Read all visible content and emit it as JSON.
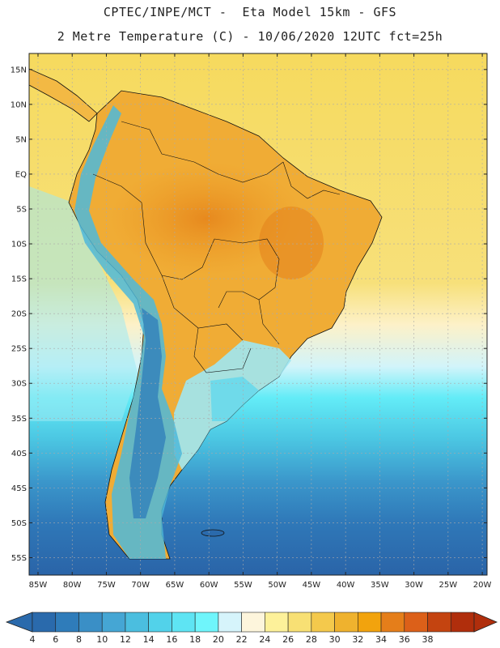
{
  "header": {
    "title_line1": "CPTEC/INPE/MCT -  Eta Model 15km - GFS",
    "title_line2": "2 Metre Temperature (C) - 10/06/2020 12UTC fct=25h"
  },
  "map": {
    "lat_labels": [
      "15N",
      "10N",
      "5N",
      "EQ",
      "5S",
      "10S",
      "15S",
      "20S",
      "25S",
      "30S",
      "35S",
      "40S",
      "45S",
      "50S",
      "55S"
    ],
    "lon_labels": [
      "85W",
      "80W",
      "75W",
      "70W",
      "65W",
      "60W",
      "55W",
      "50W",
      "45W",
      "40W",
      "35W",
      "30W",
      "25W",
      "20W"
    ]
  },
  "colorbar": {
    "ticks": [
      "4",
      "6",
      "8",
      "10",
      "12",
      "14",
      "16",
      "18",
      "20",
      "22",
      "24",
      "26",
      "28",
      "30",
      "32",
      "34",
      "36",
      "38"
    ],
    "colors": [
      "#2a6aac",
      "#2f7cba",
      "#3a8fc6",
      "#45a6d4",
      "#4bbedf",
      "#52d2ea",
      "#5ee4f3",
      "#6ff5fb",
      "#d6f4fb",
      "#fdf5dc",
      "#fdf19a",
      "#f8e074",
      "#f4c94c",
      "#efb22e",
      "#f2a30d",
      "#e57e1a",
      "#dc6019",
      "#c44410",
      "#b02e0c"
    ],
    "low_color": "#2a6aac",
    "high_color": "#b02e0c"
  }
}
